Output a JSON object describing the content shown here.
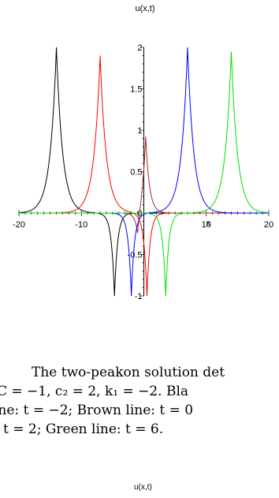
{
  "chart_data": {
    "type": "line",
    "title": "u(x,t)",
    "xlabel": "x",
    "ylabel": "",
    "xlim": [
      -20,
      20
    ],
    "ylim": [
      -1,
      2
    ],
    "xticks": [
      -20,
      -10,
      10,
      20
    ],
    "yticks": [
      -1,
      -0.5,
      0,
      0.5,
      1,
      1.5,
      2
    ],
    "ytick_labels": [
      "-1",
      "-0.5",
      "0",
      "0.5",
      "1",
      "1.5",
      "2"
    ],
    "grid": false,
    "series": [
      {
        "color": "#000000",
        "peaks": [
          {
            "x": -14,
            "h": 2.0,
            "w": 1.0
          },
          {
            "x": -4.7,
            "h": -1.0,
            "w": 0.5
          }
        ]
      },
      {
        "color": "#ff0000",
        "peaks": [
          {
            "x": -7,
            "h": 1.9,
            "w": 1.0
          },
          {
            "x": 0.5,
            "h": -1.0,
            "w": 0.5
          }
        ]
      },
      {
        "color": "#a52a2a",
        "peaks": [
          {
            "x": 0.3,
            "h": 0.95,
            "w": 0.6
          },
          {
            "x": -1.0,
            "h": -0.35,
            "w": 0.5
          }
        ]
      },
      {
        "color": "#0000ff",
        "peaks": [
          {
            "x": 7,
            "h": 2.0,
            "w": 1.0
          },
          {
            "x": -2.0,
            "h": -1.0,
            "w": 0.5
          }
        ]
      },
      {
        "color": "#00e000",
        "peaks": [
          {
            "x": 14,
            "h": 1.95,
            "w": 1.0
          },
          {
            "x": 3.5,
            "h": -1.0,
            "w": 0.5
          }
        ]
      }
    ]
  },
  "caption": {
    "line1": "The two-peakon solution det",
    "line2": "C = −1, c₂ = 2, k₁ = −2. Bla",
    "line3": "ine: t = −2; Brown line: t = 0",
    "line4": "t = 2; Green line: t = 6."
  },
  "bottom_label": "u(x,t)"
}
